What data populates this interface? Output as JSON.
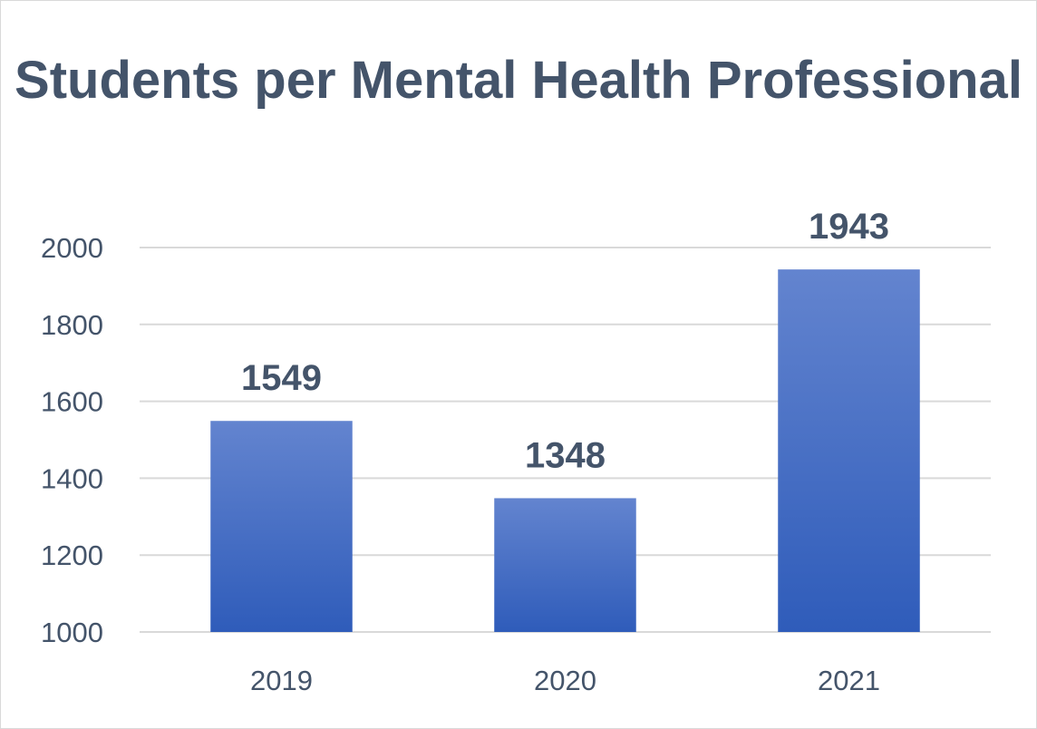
{
  "chart_data": {
    "type": "bar",
    "title": "Students per Mental Health Professional",
    "categories": [
      "2019",
      "2020",
      "2021"
    ],
    "values": [
      1549,
      1348,
      1943
    ],
    "data_labels": [
      "1549",
      "1348",
      "1943"
    ],
    "xlabel": "",
    "ylabel": "",
    "ylim": [
      1000,
      2000
    ],
    "yticks": [
      "1000",
      "1200",
      "1400",
      "1600",
      "1800",
      "2000"
    ],
    "grid": true,
    "legend": "none",
    "colors": {
      "bar_top": "#6384cf",
      "bar_bottom": "#2f5cba",
      "grid": "#d9d9d9",
      "text": "#44546a"
    }
  }
}
